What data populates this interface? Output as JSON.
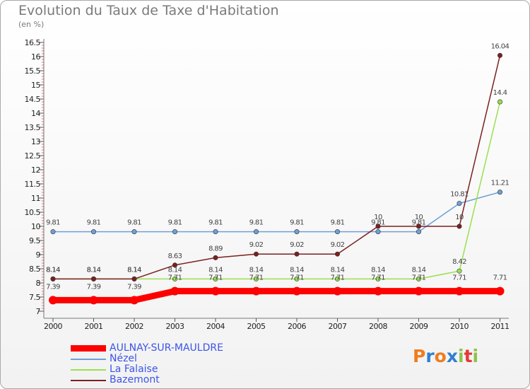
{
  "chart_data": {
    "type": "line",
    "title": "Evolution du Taux de Taxe d'Habitation",
    "subtitle": "(en %)",
    "x": [
      "2000",
      "2001",
      "2002",
      "2003",
      "2004",
      "2005",
      "2006",
      "2007",
      "2008",
      "2009",
      "2010",
      "2011"
    ],
    "y_ticks": [
      "7",
      "7.5",
      "8",
      "8.5",
      "9",
      "9.5",
      "10",
      "10.5",
      "11",
      "11.5",
      "12",
      "12.5",
      "13",
      "13.5",
      "14",
      "14.5",
      "15",
      "15.5",
      "16",
      "16.5"
    ],
    "ylim": [
      7,
      16.5
    ],
    "grid": false,
    "legend_position": "bottom-left",
    "series": [
      {
        "name": "AULNAY-SUR-MAULDRE",
        "color": "#ff0000",
        "values": [
          7.39,
          7.39,
          7.39,
          7.71,
          7.71,
          7.71,
          7.71,
          7.71,
          7.71,
          7.71,
          7.71,
          7.71
        ],
        "labels": [
          "7.39",
          "7.39",
          "7.39",
          "7.71",
          "7.71",
          "7.71",
          "7.71",
          "7.71",
          "7.71",
          "7.71",
          "7.71",
          "7.71"
        ]
      },
      {
        "name": "Nézel",
        "color": "#6fa0d6",
        "values": [
          9.81,
          9.81,
          9.81,
          9.81,
          9.81,
          9.81,
          9.81,
          9.81,
          9.81,
          9.81,
          10.81,
          11.21
        ],
        "labels": [
          "9.81",
          "9.81",
          "9.81",
          "9.81",
          "9.81",
          "9.81",
          "9.81",
          "9.81",
          "9.81",
          "9.81",
          "10.81",
          "11.21"
        ]
      },
      {
        "name": "La Falaise",
        "color": "#99e050",
        "values": [
          8.14,
          8.14,
          8.14,
          8.14,
          8.14,
          8.14,
          8.14,
          8.14,
          8.14,
          8.14,
          8.42,
          14.4
        ],
        "labels": [
          "8.14",
          "8.14",
          "8.14",
          "8.14",
          "8.14",
          "8.14",
          "8.14",
          "8.14",
          "8.14",
          "8.14",
          "8.42",
          "14.4"
        ]
      },
      {
        "name": "Bazemont",
        "color": "#7b2020",
        "values": [
          8.14,
          8.14,
          8.14,
          8.63,
          8.89,
          9.02,
          9.02,
          9.02,
          10,
          10,
          10,
          16.04
        ],
        "labels": [
          "8.14",
          "8.14",
          "8.14",
          "8.63",
          "8.89",
          "9.02",
          "9.02",
          "9.02",
          "10",
          "10",
          "10",
          "16.04"
        ]
      }
    ]
  },
  "legend": {
    "items": [
      "AULNAY-SUR-MAULDRE",
      "Nézel",
      "La Falaise",
      "Bazemont"
    ]
  },
  "logo": {
    "letters": [
      "P",
      "r",
      "o",
      "x",
      "i",
      "t",
      "i"
    ],
    "colors": [
      "#f07c1e",
      "#2f7fd1",
      "#f07c1e",
      "#2f7fd1",
      "#8bc34a",
      "#e53935",
      "#8bc34a"
    ]
  }
}
